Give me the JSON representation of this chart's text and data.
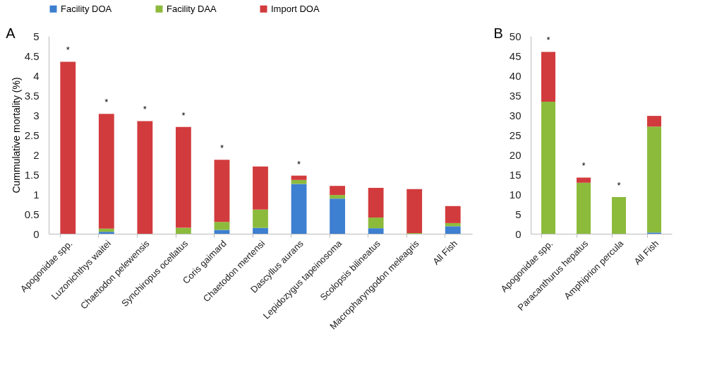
{
  "chart_data": [
    {
      "type": "bar",
      "title": "A",
      "ylabel": "Cummulative mortality (%)",
      "stacked": true,
      "legend": "top",
      "grid": false,
      "categories": [
        "Apogonidae spp.",
        "Luzonichthys waitei",
        "Chaetodon pelewensis",
        "Synchiropus ocellatus",
        "Coris gaimard",
        "Chaetodon mertensi",
        "Dascyllus aurans",
        "Lepidozygus tapeinosoma",
        "Scolopsis bilineatus",
        "Macropharyngodon meleagris",
        "All Fish"
      ],
      "series": [
        {
          "name": "Facility DOA",
          "color": "#3d7fd0",
          "values": [
            0,
            0.05,
            0,
            0,
            0.1,
            0.15,
            1.26,
            0.89,
            0.14,
            0,
            0.19
          ]
        },
        {
          "name": "Facility DAA",
          "color": "#8cbb3c",
          "values": [
            0,
            0.08,
            0,
            0.15,
            0.2,
            0.46,
            0.1,
            0.09,
            0.27,
            0.02,
            0.08
          ]
        },
        {
          "name": "Import DOA",
          "color": "#d23b3d",
          "values": [
            4.35,
            2.9,
            2.85,
            2.55,
            1.57,
            1.09,
            0.11,
            0.23,
            0.75,
            1.11,
            0.43
          ]
        }
      ],
      "ylim": [
        0,
        5
      ],
      "yticks": [
        0,
        0.5,
        1,
        1.5,
        2,
        2.5,
        3,
        3.5,
        4,
        4.5,
        5
      ],
      "annotations": [
        {
          "text": "*",
          "x": "Apogonidae spp.",
          "y": 4.35
        },
        {
          "text": "*",
          "x": "Luzonichthys waitei",
          "y": 3.03
        },
        {
          "text": "*",
          "x": "Chaetodon pelewensis",
          "y": 2.85
        },
        {
          "text": "*",
          "x": "Synchiropus ocellatus",
          "y": 2.7
        },
        {
          "text": "*",
          "x": "Coris gaimard",
          "y": 1.87
        },
        {
          "text": "*",
          "x": "Dascyllus aurans",
          "y": 1.47
        }
      ]
    },
    {
      "type": "bar",
      "title": "B",
      "stacked": true,
      "legend": "top",
      "grid": false,
      "categories": [
        "Apogonidae spp.",
        "Paracanthurus hepatus",
        "Amphiprion percula",
        "All Fish"
      ],
      "series": [
        {
          "name": "Facility DOA",
          "color": "#3d7fd0",
          "values": [
            0,
            0,
            0,
            0.3
          ]
        },
        {
          "name": "Facility DAA",
          "color": "#8cbb3c",
          "values": [
            33.4,
            12.9,
            9.3,
            26.8
          ]
        },
        {
          "name": "Import DOA",
          "color": "#d23b3d",
          "values": [
            12.6,
            1.3,
            0,
            2.7
          ]
        }
      ],
      "ylim": [
        0,
        50
      ],
      "yticks": [
        0,
        5,
        10,
        15,
        20,
        25,
        30,
        35,
        40,
        45,
        50
      ],
      "annotations": [
        {
          "text": "*",
          "x": "Apogonidae spp.",
          "y": 46
        },
        {
          "text": "*",
          "x": "Paracanthurus hepatus",
          "y": 14.2
        },
        {
          "text": "*",
          "x": "Amphiprion percula",
          "y": 9.3
        }
      ]
    }
  ]
}
